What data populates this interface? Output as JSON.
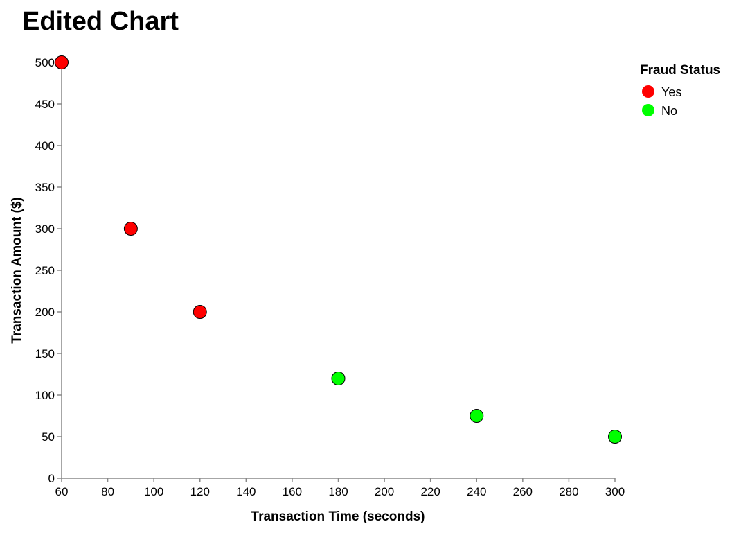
{
  "chart_data": {
    "type": "scatter",
    "title": "Edited Chart",
    "xlabel": "Transaction Time (seconds)",
    "ylabel": "Transaction Amount ($)",
    "xlim": [
      60,
      300
    ],
    "ylim": [
      0,
      500
    ],
    "x_ticks": [
      60,
      80,
      100,
      120,
      140,
      160,
      180,
      200,
      220,
      240,
      260,
      280,
      300
    ],
    "y_ticks": [
      0,
      50,
      100,
      150,
      200,
      250,
      300,
      350,
      400,
      450,
      500
    ],
    "grid": false,
    "legend": {
      "title": "Fraud Status",
      "placement": "top-right",
      "entries": [
        {
          "label": "Yes",
          "color": "#ff0000"
        },
        {
          "label": "No",
          "color": "#00ff00"
        }
      ]
    },
    "points": [
      {
        "x": 60,
        "y": 500,
        "fraud": "Yes"
      },
      {
        "x": 90,
        "y": 300,
        "fraud": "Yes"
      },
      {
        "x": 120,
        "y": 200,
        "fraud": "Yes"
      },
      {
        "x": 180,
        "y": 120,
        "fraud": "No"
      },
      {
        "x": 240,
        "y": 75,
        "fraud": "No"
      },
      {
        "x": 300,
        "y": 50,
        "fraud": "No"
      }
    ],
    "colors": {
      "Yes": "#ff0000",
      "No": "#00ff00",
      "axis": "#888888",
      "marker_stroke": "#000000"
    }
  }
}
